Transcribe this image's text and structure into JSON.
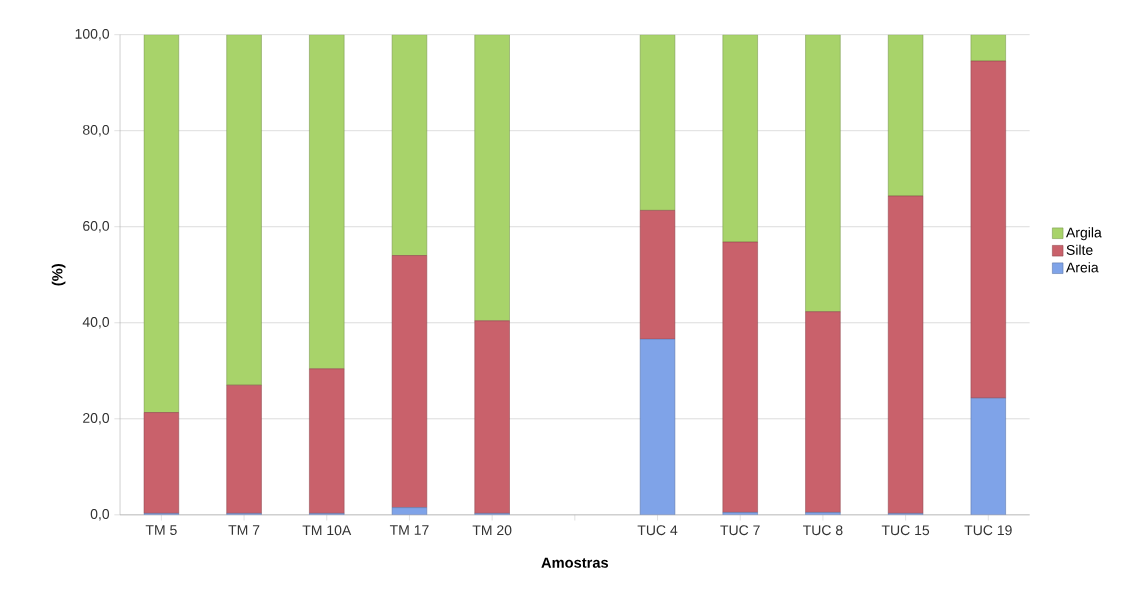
{
  "chart_data": {
    "type": "bar",
    "stacked": true,
    "xlabel": "Amostras",
    "ylabel": "(%)",
    "categories": [
      "TM 5",
      "TM 7",
      "TM 10A",
      "TM 17",
      "TM 20",
      null,
      "TUC 4",
      "TUC 7",
      "TUC 8",
      "TUC 15",
      "TUC 19"
    ],
    "series": [
      {
        "name": "Areia",
        "color": "#7fa3e8",
        "values": [
          0.3,
          0.3,
          0.3,
          1.5,
          0.3,
          null,
          36.6,
          0.5,
          0.5,
          0.3,
          24.3
        ]
      },
      {
        "name": "Silte",
        "color": "#c9616b",
        "values": [
          21.0,
          26.7,
          30.1,
          52.5,
          40.1,
          null,
          26.8,
          56.3,
          41.8,
          66.1,
          70.2
        ]
      },
      {
        "name": "Argila",
        "color": "#a8d36a",
        "values": [
          78.7,
          73.0,
          69.6,
          46.0,
          59.6,
          null,
          36.6,
          43.2,
          57.7,
          33.6,
          5.5
        ]
      }
    ],
    "ylim": [
      0,
      100
    ],
    "yticks": [
      {
        "value": 0,
        "label": "0,0"
      },
      {
        "value": 20,
        "label": "20,0"
      },
      {
        "value": 40,
        "label": "40,0"
      },
      {
        "value": 60,
        "label": "60,0"
      },
      {
        "value": 80,
        "label": "80,0"
      },
      {
        "value": 100,
        "label": "100,0"
      }
    ],
    "grid": "y",
    "legend": "right"
  }
}
